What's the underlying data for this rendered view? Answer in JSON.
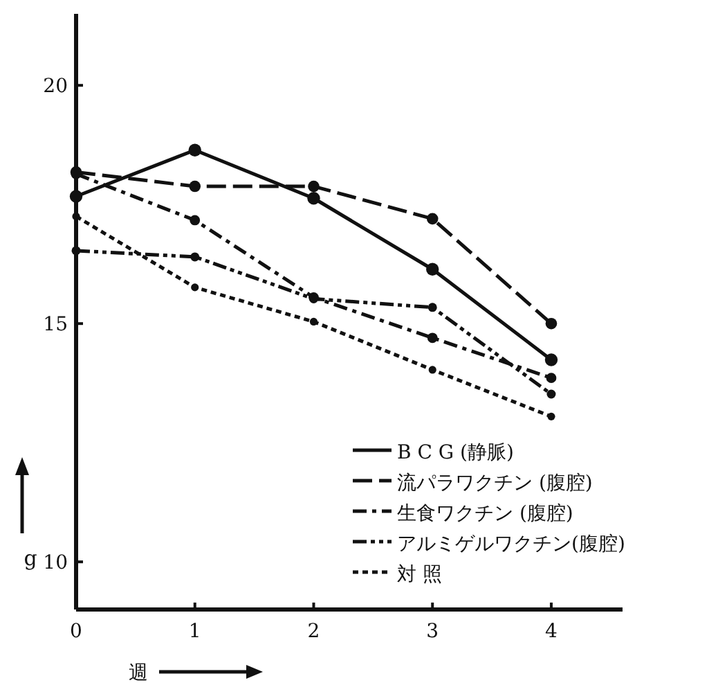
{
  "chart_data": {
    "type": "line",
    "xlabel": "週",
    "ylabel": "g",
    "x": [
      0,
      1,
      2,
      3,
      4
    ],
    "xlim": [
      0,
      4.6
    ],
    "xticks": [
      0,
      1,
      2,
      3,
      4
    ],
    "ylim": [
      9,
      21.5
    ],
    "yticks": [
      10,
      15,
      20
    ],
    "marker": "circle",
    "grid": false,
    "legend": "bottom right",
    "series": [
      {
        "name": "B C G (静脈)",
        "color": "#111111",
        "line_style": "solid",
        "values": [
          17.67,
          18.64,
          17.63,
          16.14,
          14.24
        ]
      },
      {
        "name": "流パラワクチン (腹腔)",
        "color": "#111111",
        "line_style": "dashed",
        "values": [
          18.18,
          17.88,
          17.88,
          17.2,
          15.0
        ]
      },
      {
        "name": "生食ワクチン (腹腔)",
        "color": "#111111",
        "line_style": "dashdot",
        "values": [
          18.14,
          17.17,
          15.55,
          14.7,
          13.86
        ]
      },
      {
        "name": "アルミゲルワクチン(腹腔)",
        "color": "#111111",
        "line_style": "dashdotdot",
        "values": [
          16.53,
          16.4,
          15.52,
          15.34,
          13.52
        ]
      },
      {
        "name": "対 照",
        "color": "#111111",
        "line_style": "dotted",
        "values": [
          17.25,
          15.76,
          15.04,
          14.03,
          13.05
        ]
      }
    ]
  }
}
